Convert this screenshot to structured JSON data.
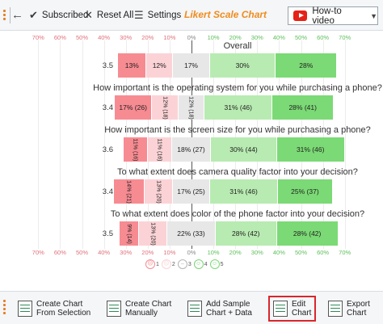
{
  "toolbar": {
    "subscribed_label": "Subscribed",
    "reset_label": "Reset All",
    "settings_label": "Settings",
    "title": "Likert Scale Chart",
    "video_label": "How-to video"
  },
  "colors": {
    "strongly_negative": "#f78b92",
    "negative": "#fbd3d6",
    "neutral": "#e7e7e7",
    "positive": "#b8ebb2",
    "strongly_positive": "#7bda75",
    "accent": "#f08c1c"
  },
  "chart_data": {
    "type": "bar",
    "axis_ticks": [
      "70%",
      "60%",
      "50%",
      "40%",
      "30%",
      "20%",
      "10%",
      "0%",
      "10%",
      "20%",
      "30%",
      "40%",
      "50%",
      "60%",
      "70%"
    ],
    "tick_values": [
      -70,
      -60,
      -50,
      -40,
      -30,
      -20,
      -10,
      0,
      10,
      20,
      30,
      40,
      50,
      60,
      70
    ],
    "xlim": [
      -70,
      70
    ],
    "rows": [
      {
        "title": "Overall",
        "score": "3.5",
        "values": [
          13,
          12,
          17,
          30,
          28
        ],
        "labels": [
          "13%",
          "12%",
          "17%",
          "30%",
          "28%"
        ]
      },
      {
        "title": "How important is the operating system for you while purchasing a phone?",
        "score": "3.4",
        "values": [
          17,
          12,
          12,
          31,
          28
        ],
        "labels": [
          "17% (26)",
          "12% (18)",
          "12% (18)",
          "31% (46)",
          "28% (41)"
        ]
      },
      {
        "title": "How important is the screen size for you while purchasing a phone?",
        "score": "3.6",
        "values": [
          11,
          11,
          18,
          30,
          31
        ],
        "labels": [
          "11% (16)",
          "11% (16)",
          "18% (27)",
          "30% (44)",
          "31% (46)"
        ]
      },
      {
        "title": "To what extent does camera quality factor into your decision?",
        "score": "3.4",
        "values": [
          14,
          13,
          17,
          31,
          25
        ],
        "labels": [
          "14% (21)",
          "13% (20)",
          "17% (25)",
          "31% (46)",
          "25% (37)"
        ]
      },
      {
        "title": "To what extent does color of the phone factor into your decision?",
        "score": "3.5",
        "values": [
          9,
          13,
          22,
          28,
          28
        ],
        "labels": [
          "9% (14)",
          "13% (20)",
          "22% (33)",
          "28% (42)",
          "28% (42)"
        ]
      }
    ],
    "legend": [
      "1",
      "2",
      "3",
      "4",
      "5"
    ],
    "legend_icons": [
      "very-sad-face-icon",
      "sad-face-icon",
      "neutral-face-icon",
      "happy-face-icon",
      "very-happy-face-icon"
    ]
  },
  "ribbon": {
    "create_selection_line1": "Create Chart",
    "create_selection_line2": "From Selection",
    "create_manual_line1": "Create Chart",
    "create_manual_line2": "Manually",
    "add_sample_line1": "Add Sample",
    "add_sample_line2": "Chart + Data",
    "edit_line1": "Edit",
    "edit_line2": "Chart",
    "export_line1": "Export",
    "export_line2": "Chart"
  }
}
